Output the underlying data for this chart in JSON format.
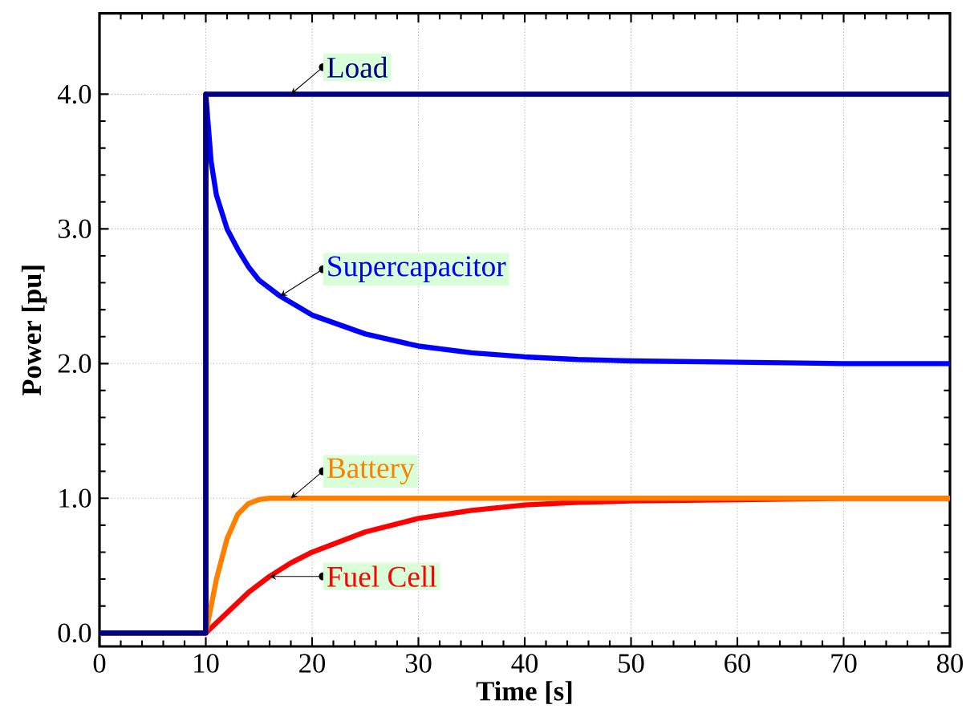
{
  "chart_data": {
    "type": "line",
    "xlabel": "Time [s]",
    "ylabel": "Power [pu]",
    "xlim": [
      0,
      80
    ],
    "ylim": [
      -0.1,
      4.6
    ],
    "xticks": [
      0,
      10,
      20,
      30,
      40,
      50,
      60,
      70,
      80
    ],
    "yticks": [
      {
        "value": 0,
        "label": "0.0"
      },
      {
        "value": 1,
        "label": "1.0"
      },
      {
        "value": 2,
        "label": "2.0"
      },
      {
        "value": 3,
        "label": "3.0"
      },
      {
        "value": 4,
        "label": "4.0"
      }
    ],
    "grid": true,
    "legend": false,
    "line_style": "solid",
    "marker": "none",
    "series": [
      {
        "name": "Load",
        "color": "#000080",
        "x": [
          0,
          10,
          10,
          80
        ],
        "values": [
          0,
          0,
          4,
          4
        ]
      },
      {
        "name": "Supercapacitor",
        "color": "#0000ff",
        "x": [
          0,
          10,
          10,
          10.5,
          11,
          12,
          13,
          14,
          15,
          17,
          20,
          25,
          30,
          35,
          40,
          45,
          50,
          60,
          70,
          80
        ],
        "values": [
          0,
          0,
          4,
          3.5,
          3.25,
          3.0,
          2.85,
          2.72,
          2.62,
          2.5,
          2.36,
          2.22,
          2.13,
          2.08,
          2.05,
          2.03,
          2.02,
          2.01,
          2.0,
          2.0
        ]
      },
      {
        "name": "Battery",
        "color": "#ff8000",
        "x": [
          0,
          10,
          11,
          12,
          13,
          14,
          15,
          16,
          80
        ],
        "values": [
          0,
          0,
          0.4,
          0.7,
          0.88,
          0.96,
          0.99,
          1.0,
          1.0
        ]
      },
      {
        "name": "Fuel Cell",
        "color": "#ff0000",
        "x": [
          0,
          10,
          12,
          14,
          16,
          18,
          20,
          25,
          30,
          35,
          40,
          45,
          50,
          60,
          70,
          80
        ],
        "values": [
          0,
          0,
          0.15,
          0.3,
          0.42,
          0.52,
          0.6,
          0.75,
          0.85,
          0.91,
          0.95,
          0.97,
          0.98,
          0.99,
          1.0,
          1.0
        ]
      }
    ]
  }
}
